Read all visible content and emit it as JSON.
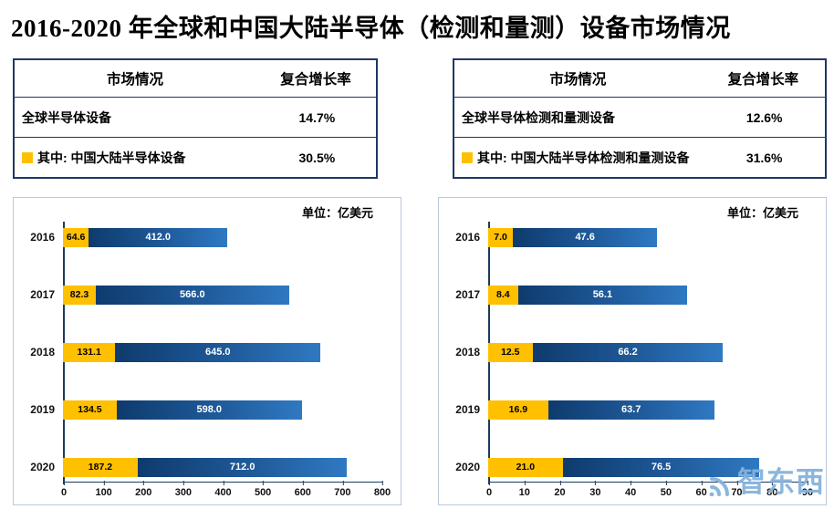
{
  "title": "2016-2020 年全球和中国大陆半导体（检测和量测）设备市场情况",
  "watermark": "智东西",
  "colors": {
    "china_bar": "#FFC000",
    "global_bar_dark": "#0E3B6D",
    "global_bar_light": "#2F79C2",
    "table_border": "#1F3864",
    "axis": "#1B3A61",
    "watermark": "#85B3DC"
  },
  "panels": [
    {
      "table": {
        "headers": [
          "市场情况",
          "复合增长率"
        ],
        "rows": [
          {
            "label": "全球半导体设备",
            "value": "14.7%"
          },
          {
            "label": "其中: 中国大陆半导体设备",
            "value": "30.5%"
          }
        ]
      },
      "unit_label": "单位：亿美元"
    },
    {
      "table": {
        "headers": [
          "市场情况",
          "复合增长率"
        ],
        "rows": [
          {
            "label": "全球半导体检测和量测设备",
            "value": "12.6%"
          },
          {
            "label": "其中: 中国大陆半导体检测和量测设备",
            "value": "31.6%"
          }
        ]
      },
      "unit_label": "单位：亿美元"
    }
  ],
  "chart_data": [
    {
      "type": "bar",
      "orientation": "horizontal",
      "categories": [
        "2016",
        "2017",
        "2018",
        "2019",
        "2020"
      ],
      "series": [
        {
          "name": "中国大陆半导体设备",
          "values": [
            64.6,
            82.3,
            131.1,
            134.5,
            187.2
          ]
        },
        {
          "name": "全球半导体设备",
          "values": [
            412.0,
            566.0,
            645.0,
            598.0,
            712.0
          ]
        }
      ],
      "xlim": [
        0,
        800
      ],
      "xticks": [
        0,
        100,
        200,
        300,
        400,
        500,
        600,
        700,
        800
      ],
      "unit": "亿美元"
    },
    {
      "type": "bar",
      "orientation": "horizontal",
      "categories": [
        "2016",
        "2017",
        "2018",
        "2019",
        "2020"
      ],
      "series": [
        {
          "name": "中国大陆半导体检测和量测设备",
          "values": [
            7.0,
            8.4,
            12.5,
            16.9,
            21.0
          ]
        },
        {
          "name": "全球半导体检测和量测设备",
          "values": [
            47.6,
            56.1,
            66.2,
            63.7,
            76.5
          ]
        }
      ],
      "xlim": [
        0,
        90
      ],
      "xticks": [
        0,
        10,
        20,
        30,
        40,
        50,
        60,
        70,
        80,
        90
      ],
      "unit": "亿美元"
    }
  ]
}
